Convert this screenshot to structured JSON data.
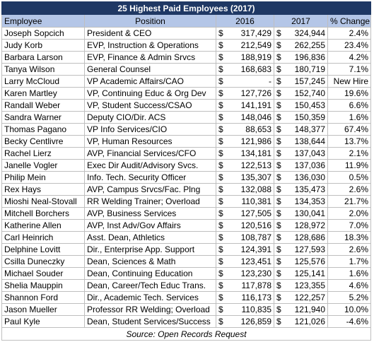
{
  "table": {
    "title": "25 Highest Paid Employees (2017)",
    "headers": [
      "Employee",
      "Position",
      "2016",
      "2017",
      "% Change"
    ],
    "currency_symbol": "$",
    "rows": [
      [
        "Joseph Sopcich",
        "President & CEO",
        "317,429",
        "324,944",
        "2.4%"
      ],
      [
        "Judy Korb",
        "EVP, Instruction & Operations",
        "212,549",
        "262,255",
        "23.4%"
      ],
      [
        "Barbara Larson",
        "EVP, Finance & Admin Srvcs",
        "188,919",
        "196,836",
        "4.2%"
      ],
      [
        "Tanya Wilson",
        "General Counsel",
        "168,683",
        "180,719",
        "7.1%"
      ],
      [
        "Larry McCloud",
        "VP Academic Affairs/CAO",
        "-",
        "157,245",
        "New Hire"
      ],
      [
        "Karen Martley",
        "VP, Continuing Educ & Org Dev",
        "127,726",
        "152,740",
        "19.6%"
      ],
      [
        "Randall Weber",
        "VP, Student Success/CSAO",
        "141,191",
        "150,453",
        "6.6%"
      ],
      [
        "Sandra Warner",
        "Deputy CIO/Dir. ACS",
        "148,046",
        "150,359",
        "1.6%"
      ],
      [
        "Thomas Pagano",
        "VP Info Services/CIO",
        "88,653",
        "148,377",
        "67.4%"
      ],
      [
        "Becky Centlivre",
        "VP, Human Resources",
        "121,986",
        "138,644",
        "13.7%"
      ],
      [
        "Rachel Lierz",
        "AVP, Financial Services/CFO",
        "134,181",
        "137,043",
        "2.1%"
      ],
      [
        "Janelle Vogler",
        "Exec Dir Audit/Advisory Svcs.",
        "122,513",
        "137,036",
        "11.9%"
      ],
      [
        "Philip Mein",
        "Info. Tech. Security Officer",
        "135,307",
        "136,030",
        "0.5%"
      ],
      [
        "Rex Hays",
        "AVP, Campus Srvcs/Fac. Plng",
        "132,088",
        "135,473",
        "2.6%"
      ],
      [
        "Mioshi Neal-Stovall",
        "RR Welding Trainer; Overload",
        "110,381",
        "134,353",
        "21.7%"
      ],
      [
        "Mitchell Borchers",
        "AVP, Business Services",
        "127,505",
        "130,041",
        "2.0%"
      ],
      [
        "Katherine Allen",
        "AVP, Inst Adv/Gov Affairs",
        "120,516",
        "128,972",
        "7.0%"
      ],
      [
        "Carl Heinrich",
        "Asst. Dean, Athletics",
        "108,787",
        "128,686",
        "18.3%"
      ],
      [
        "Delphine Lovitt",
        "Dir., Enterprise App. Support",
        "124,391",
        "127,593",
        "2.6%"
      ],
      [
        "Csilla Duneczky",
        "Dean, Sciences & Math",
        "123,451",
        "125,576",
        "1.7%"
      ],
      [
        "Michael Souder",
        "Dean, Continuing Education",
        "123,230",
        "125,141",
        "1.6%"
      ],
      [
        "Shelia Mauppin",
        "Dean, Career/Tech Educ Trans.",
        "117,878",
        "123,355",
        "4.6%"
      ],
      [
        "Shannon Ford",
        "Dir., Academic Tech. Services",
        "116,173",
        "122,257",
        "5.2%"
      ],
      [
        "Jason Mueller",
        "Professor RR Welding; Overload",
        "110,835",
        "121,940",
        "10.0%"
      ],
      [
        "Paul Kyle",
        "Dean, Student Services/Success",
        "126,859",
        "121,026",
        "-4.6%"
      ]
    ],
    "footer": "Source: Open Records Request"
  }
}
